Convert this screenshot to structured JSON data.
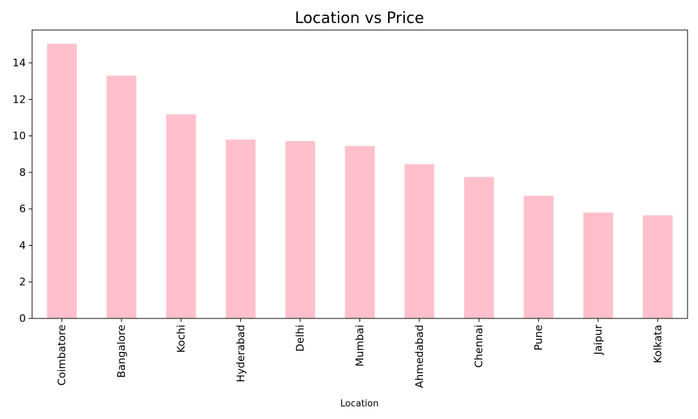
{
  "chart_data": {
    "type": "bar",
    "title": "Location vs Price",
    "xlabel": "Location",
    "ylabel": "",
    "categories": [
      "Coimbatore",
      "Bangalore",
      "Kochi",
      "Hyderabad",
      "Delhi",
      "Mumbai",
      "Ahmedabad",
      "Chennai",
      "Pune",
      "Jaipur",
      "Kolkata"
    ],
    "values": [
      15.05,
      13.3,
      11.18,
      9.8,
      9.72,
      9.45,
      8.45,
      7.75,
      6.72,
      5.8,
      5.65
    ],
    "ylim": [
      0,
      15.8
    ],
    "yticks": [
      0,
      2,
      4,
      6,
      8,
      10,
      12,
      14
    ],
    "bar_color": "#ffc0cb",
    "grid": false,
    "legend": "none"
  }
}
